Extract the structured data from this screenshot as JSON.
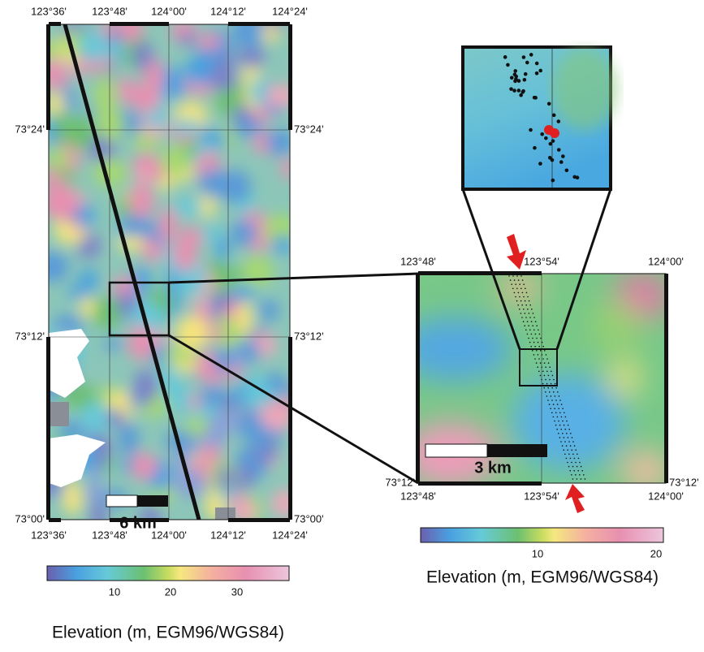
{
  "left_map": {
    "top_labels": [
      "123°36'",
      "123°48'",
      "124°00'",
      "124°12'",
      "124°24'"
    ],
    "bottom_labels": [
      "123°36'",
      "123°48'",
      "124°00'",
      "124°12'",
      "124°24'"
    ],
    "left_labels": [
      "73°24'",
      "73°12'",
      "73°00'"
    ],
    "right_labels": [
      "73°24'",
      "73°12'",
      "73°00'"
    ],
    "scale_label": "6 km"
  },
  "left_colorbar": {
    "ticks": [
      10,
      20,
      30
    ],
    "title": "Elevation (m, EGM96/WGS84)"
  },
  "right_map": {
    "top_labels": [
      "123°48'",
      "123°54'",
      "124°00'"
    ],
    "bottom_labels": [
      "123°48'",
      "123°54'",
      "124°00'"
    ],
    "left_labels": [
      "73°12'"
    ],
    "right_labels": [
      "73°12'"
    ],
    "scale_label": "3 km"
  },
  "right_colorbar": {
    "ticks": [
      10,
      20
    ],
    "title": "Elevation (m, EGM96/WGS84)"
  }
}
